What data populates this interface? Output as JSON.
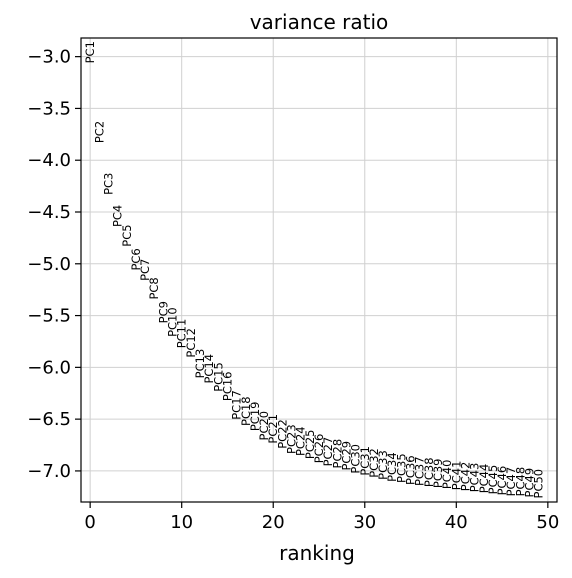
{
  "chart_data": {
    "type": "scatter",
    "title": "variance ratio",
    "xlabel": "ranking",
    "ylabel": "",
    "xlim": [
      -1,
      51
    ],
    "ylim": [
      -7.3,
      -2.82
    ],
    "xticks": [
      0,
      10,
      20,
      30,
      40,
      50
    ],
    "yticks": [
      -3.0,
      -3.5,
      -4.0,
      -4.5,
      -5.0,
      -5.5,
      -6.0,
      -6.5,
      -7.0
    ],
    "xtick_labels": [
      "0",
      "10",
      "20",
      "30",
      "40",
      "50"
    ],
    "ytick_labels": [
      "−3.0",
      "−3.5",
      "−4.0",
      "−4.5",
      "−5.0",
      "−5.5",
      "−6.0",
      "−6.5",
      "−7.0"
    ],
    "grid": true,
    "marker": "rotated-text",
    "points": [
      {
        "label": "PC1",
        "x": 0,
        "y": -2.85
      },
      {
        "label": "PC2",
        "x": 1,
        "y": -3.62
      },
      {
        "label": "PC3",
        "x": 2,
        "y": -4.12
      },
      {
        "label": "PC4",
        "x": 3,
        "y": -4.43
      },
      {
        "label": "PC5",
        "x": 4,
        "y": -4.62
      },
      {
        "label": "PC6",
        "x": 5,
        "y": -4.85
      },
      {
        "label": "PC7",
        "x": 6,
        "y": -4.95
      },
      {
        "label": "PC8",
        "x": 7,
        "y": -5.13
      },
      {
        "label": "PC9",
        "x": 8,
        "y": -5.36
      },
      {
        "label": "PC10",
        "x": 9,
        "y": -5.42
      },
      {
        "label": "PC11",
        "x": 10,
        "y": -5.53
      },
      {
        "label": "PC12",
        "x": 11,
        "y": -5.62
      },
      {
        "label": "PC13",
        "x": 12,
        "y": -5.82
      },
      {
        "label": "PC14",
        "x": 13,
        "y": -5.87
      },
      {
        "label": "PC15",
        "x": 14,
        "y": -5.95
      },
      {
        "label": "PC16",
        "x": 15,
        "y": -6.04
      },
      {
        "label": "PC17",
        "x": 16,
        "y": -6.22
      },
      {
        "label": "PC18",
        "x": 17,
        "y": -6.28
      },
      {
        "label": "PC19",
        "x": 18,
        "y": -6.33
      },
      {
        "label": "PC20",
        "x": 19,
        "y": -6.42
      },
      {
        "label": "PC21",
        "x": 20,
        "y": -6.45
      },
      {
        "label": "PC22",
        "x": 21,
        "y": -6.5
      },
      {
        "label": "PC23",
        "x": 22,
        "y": -6.55
      },
      {
        "label": "PC24",
        "x": 23,
        "y": -6.57
      },
      {
        "label": "PC25",
        "x": 24,
        "y": -6.6
      },
      {
        "label": "PC26",
        "x": 25,
        "y": -6.64
      },
      {
        "label": "PC27",
        "x": 26,
        "y": -6.67
      },
      {
        "label": "PC28",
        "x": 27,
        "y": -6.69
      },
      {
        "label": "PC29",
        "x": 28,
        "y": -6.71
      },
      {
        "label": "PC30",
        "x": 29,
        "y": -6.74
      },
      {
        "label": "PC31",
        "x": 30,
        "y": -6.76
      },
      {
        "label": "PC32",
        "x": 31,
        "y": -6.78
      },
      {
        "label": "PC33",
        "x": 32,
        "y": -6.8
      },
      {
        "label": "PC34",
        "x": 33,
        "y": -6.82
      },
      {
        "label": "PC35",
        "x": 34,
        "y": -6.83
      },
      {
        "label": "PC36",
        "x": 35,
        "y": -6.85
      },
      {
        "label": "PC37",
        "x": 36,
        "y": -6.86
      },
      {
        "label": "PC38",
        "x": 37,
        "y": -6.87
      },
      {
        "label": "PC39",
        "x": 38,
        "y": -6.88
      },
      {
        "label": "PC40",
        "x": 39,
        "y": -6.89
      },
      {
        "label": "PC41",
        "x": 40,
        "y": -6.9
      },
      {
        "label": "PC42",
        "x": 41,
        "y": -6.91
      },
      {
        "label": "PC43",
        "x": 42,
        "y": -6.92
      },
      {
        "label": "PC44",
        "x": 43,
        "y": -6.93
      },
      {
        "label": "PC45",
        "x": 44,
        "y": -6.94
      },
      {
        "label": "PC46",
        "x": 45,
        "y": -6.95
      },
      {
        "label": "PC47",
        "x": 46,
        "y": -6.96
      },
      {
        "label": "PC48",
        "x": 47,
        "y": -6.96
      },
      {
        "label": "PC49",
        "x": 48,
        "y": -6.97
      },
      {
        "label": "PC50",
        "x": 49,
        "y": -6.98
      }
    ]
  }
}
